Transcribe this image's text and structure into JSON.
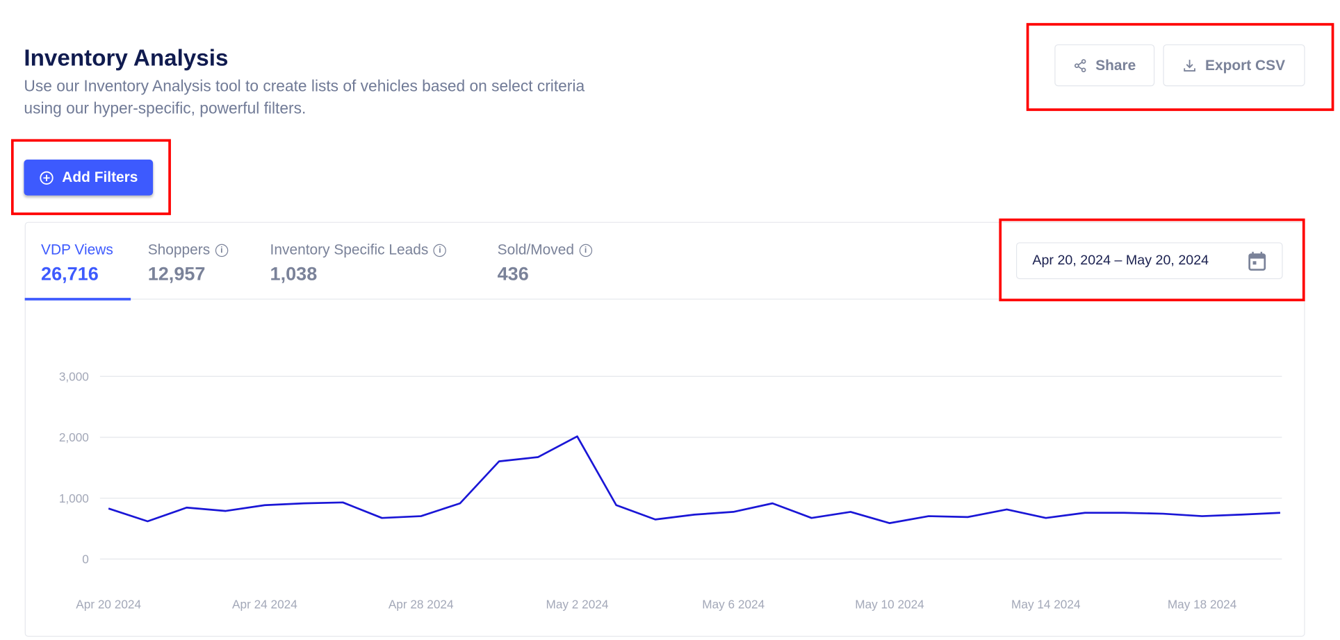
{
  "header": {
    "title": "Inventory Analysis",
    "subtitle_line1": "Use our Inventory Analysis tool to create lists of vehicles based on select criteria",
    "subtitle_line2": "using our hyper-specific, powerful filters."
  },
  "actions": {
    "share_label": "Share",
    "share_icon": "share-icon",
    "export_label": "Export CSV",
    "export_icon": "download-icon",
    "add_filters_label": "Add Filters",
    "add_filters_icon": "plus-circle-icon"
  },
  "tabs": [
    {
      "label": "VDP Views",
      "value": "26,716",
      "active": true
    },
    {
      "label": "Shoppers",
      "value": "12,957",
      "info": true
    },
    {
      "label": "Inventory Specific Leads",
      "value": "1,038",
      "info": true
    },
    {
      "label": "Sold/Moved",
      "value": "436",
      "info": true
    }
  ],
  "date_range": {
    "value": "Apr 20, 2024 – May 20, 2024",
    "icon": "calendar-icon"
  },
  "colors": {
    "accent": "#3d5afe",
    "line": "#1a16d6",
    "annotation": "#ff0000"
  },
  "chart_data": {
    "type": "line",
    "xlabel": "",
    "ylabel": "",
    "ylim": [
      0,
      3000
    ],
    "yticks": [
      "0",
      "1,000",
      "2,000",
      "3,000"
    ],
    "ytick_values": [
      0,
      1000,
      2000,
      3000
    ],
    "xtick_labels": [
      "Apr 20 2024",
      "Apr 24 2024",
      "Apr 28 2024",
      "May 2 2024",
      "May 6 2024",
      "May 10 2024",
      "May 14 2024",
      "May 18 2024"
    ],
    "grid": true,
    "x": [
      "2024-04-20",
      "2024-04-21",
      "2024-04-22",
      "2024-04-23",
      "2024-04-24",
      "2024-04-25",
      "2024-04-26",
      "2024-04-27",
      "2024-04-28",
      "2024-04-29",
      "2024-04-30",
      "2024-05-01",
      "2024-05-02",
      "2024-05-03",
      "2024-05-04",
      "2024-05-05",
      "2024-05-06",
      "2024-05-07",
      "2024-05-08",
      "2024-05-09",
      "2024-05-10",
      "2024-05-11",
      "2024-05-12",
      "2024-05-13",
      "2024-05-14",
      "2024-05-15",
      "2024-05-16",
      "2024-05-17",
      "2024-05-18",
      "2024-05-19",
      "2024-05-20"
    ],
    "values": [
      830,
      620,
      845,
      790,
      885,
      915,
      930,
      675,
      705,
      915,
      1605,
      1675,
      2015,
      885,
      650,
      730,
      775,
      915,
      675,
      775,
      590,
      705,
      690,
      815,
      675,
      760,
      760,
      745,
      705,
      730,
      760
    ]
  }
}
